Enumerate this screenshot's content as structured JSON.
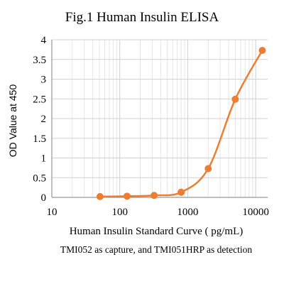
{
  "chart_data": {
    "type": "scatter",
    "title": "Fig.1 Human Insulin ELISA",
    "xlabel": "Human Insulin Standard Curve ( pg/mL)",
    "ylabel": "OD Value at 450",
    "caption": "TMI052 as capture, and TMI051HRP as detection",
    "xscale": "log",
    "xlim": [
      10,
      15000
    ],
    "ylim": [
      0,
      4
    ],
    "xticks": [
      10,
      100,
      1000,
      10000
    ],
    "xtick_labels": [
      "10",
      "100",
      "1000",
      "10000"
    ],
    "yticks": [
      0,
      0.5,
      1,
      1.5,
      2,
      2.5,
      3,
      3.5,
      4
    ],
    "ytick_labels": [
      "0",
      "0.5",
      "1",
      "1.5",
      "2",
      "2.5",
      "3",
      "3.5",
      "4"
    ],
    "grid": true,
    "series": [
      {
        "color": "#ED7D31",
        "smooth_line": true,
        "x": [
          51.2,
          128,
          320,
          800,
          2000,
          5000,
          12500
        ],
        "y": [
          0.02,
          0.03,
          0.05,
          0.13,
          0.73,
          2.49,
          3.73
        ]
      }
    ]
  }
}
